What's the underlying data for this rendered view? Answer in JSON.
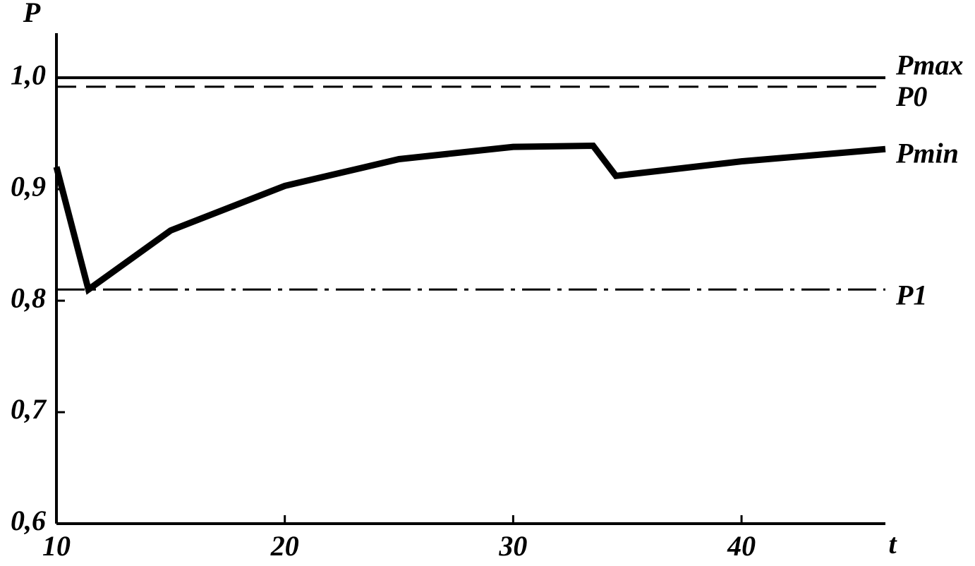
{
  "chart_data": {
    "type": "line",
    "y_label": "P",
    "x_label": "t",
    "xlim": [
      10,
      46.3
    ],
    "ylim": [
      0.6,
      1.04
    ],
    "xticks": [
      10,
      20,
      30,
      40
    ],
    "yticks": [
      {
        "value": 0.6,
        "label": "0,6"
      },
      {
        "value": 0.7,
        "label": "0,7"
      },
      {
        "value": 0.8,
        "label": "0,8"
      },
      {
        "value": 0.9,
        "label": "0,9"
      },
      {
        "value": 1.0,
        "label": "1,0"
      }
    ],
    "series": [
      {
        "name": "Pmax",
        "color": "#000000",
        "dash": "solid",
        "x": [
          10,
          46.3
        ],
        "values": [
          1.0,
          1.0
        ]
      },
      {
        "name": "P0",
        "color": "#000000",
        "dash": "dashed",
        "x": [
          10,
          46.3
        ],
        "values": [
          0.992,
          0.992
        ]
      },
      {
        "name": "Pmin",
        "color": "#000000",
        "dash": "bold",
        "x": [
          10,
          11.4,
          15,
          20,
          25,
          30,
          33.5,
          34.5,
          40,
          46.3
        ],
        "values": [
          0.92,
          0.81,
          0.863,
          0.903,
          0.927,
          0.938,
          0.939,
          0.912,
          0.925,
          0.936
        ]
      },
      {
        "name": "P1",
        "color": "#000000",
        "dash": "dashdot",
        "x": [
          10,
          46.3
        ],
        "values": [
          0.81,
          0.81
        ]
      }
    ]
  }
}
